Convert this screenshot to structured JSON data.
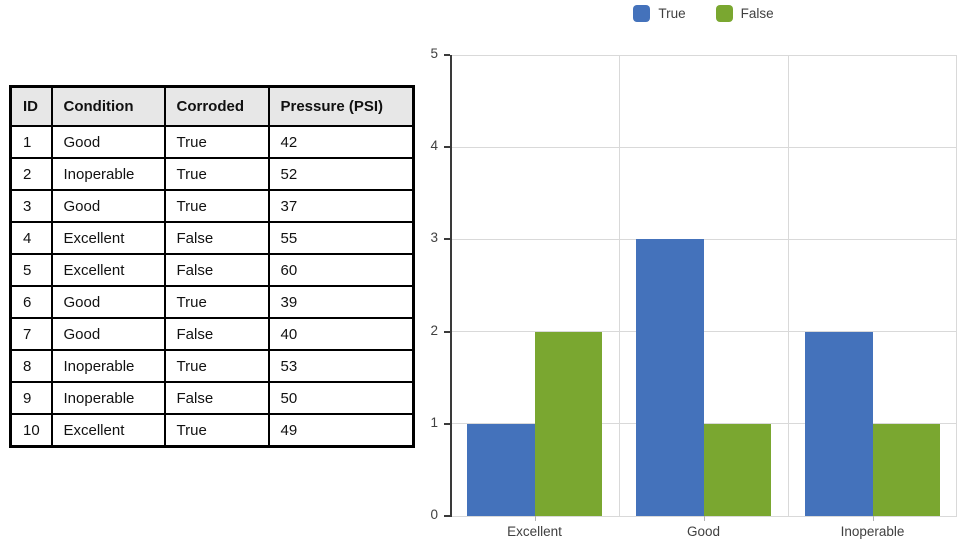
{
  "table": {
    "headers": [
      "ID",
      "Condition",
      "Corroded",
      "Pressure (PSI)"
    ],
    "rows": [
      [
        "1",
        "Good",
        "True",
        "42"
      ],
      [
        "2",
        "Inoperable",
        "True",
        "52"
      ],
      [
        "3",
        "Good",
        "True",
        "37"
      ],
      [
        "4",
        "Excellent",
        "False",
        "55"
      ],
      [
        "5",
        "Excellent",
        "False",
        "60"
      ],
      [
        "6",
        "Good",
        "True",
        "39"
      ],
      [
        "7",
        "Good",
        "False",
        "40"
      ],
      [
        "8",
        "Inoperable",
        "True",
        "53"
      ],
      [
        "9",
        "Inoperable",
        "False",
        "50"
      ],
      [
        "10",
        "Excellent",
        "True",
        "49"
      ]
    ]
  },
  "chart_data": {
    "type": "bar",
    "title": "",
    "categories": [
      "Excellent",
      "Good",
      "Inoperable"
    ],
    "series": [
      {
        "name": "True",
        "color": "#4472BB",
        "values": [
          1,
          3,
          2
        ]
      },
      {
        "name": "False",
        "color": "#7AA730",
        "values": [
          2,
          1,
          1
        ]
      }
    ],
    "ylim": [
      0,
      5
    ],
    "y_ticks": [
      0,
      1,
      2,
      3,
      4,
      5
    ],
    "legend_position": "top",
    "grid": true,
    "colors": {
      "axis": "#3a3a3a",
      "gridline": "#d9d9d9",
      "tick_label": "#404040"
    }
  }
}
